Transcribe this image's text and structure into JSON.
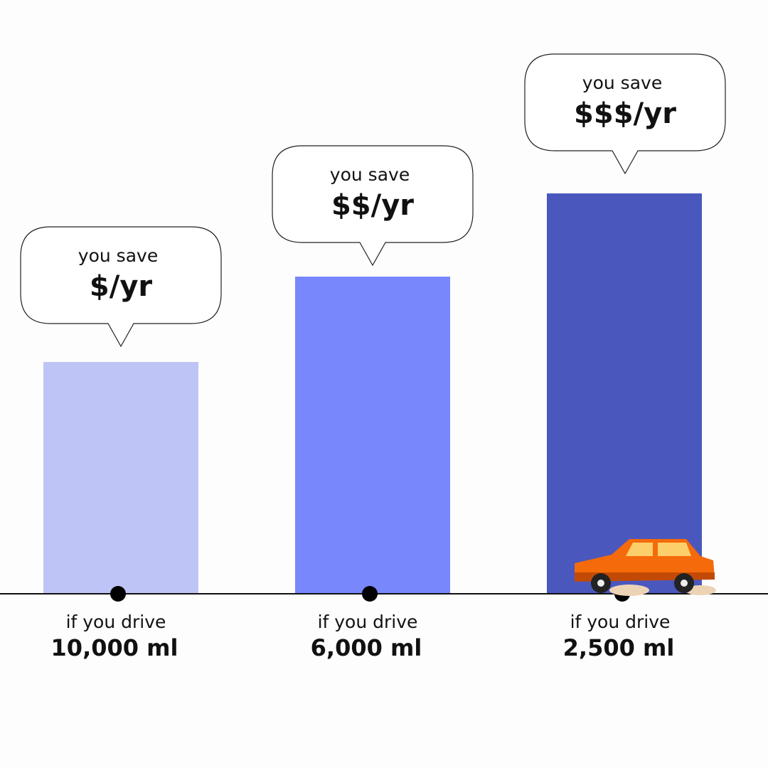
{
  "columns": [
    {
      "bubble_top": "you save",
      "bubble_amount": "$/yr",
      "drive_label": "if you drive",
      "distance": "10,000 ml",
      "color": "#bec5f6"
    },
    {
      "bubble_top": "you save",
      "bubble_amount": "$$/yr",
      "drive_label": "if you drive",
      "distance": "6,000 ml",
      "color": "#7887fb"
    },
    {
      "bubble_top": "you save",
      "bubble_amount": "$$$/yr",
      "drive_label": "if you drive",
      "distance": "2,500 ml",
      "color": "#4a57bd"
    }
  ]
}
